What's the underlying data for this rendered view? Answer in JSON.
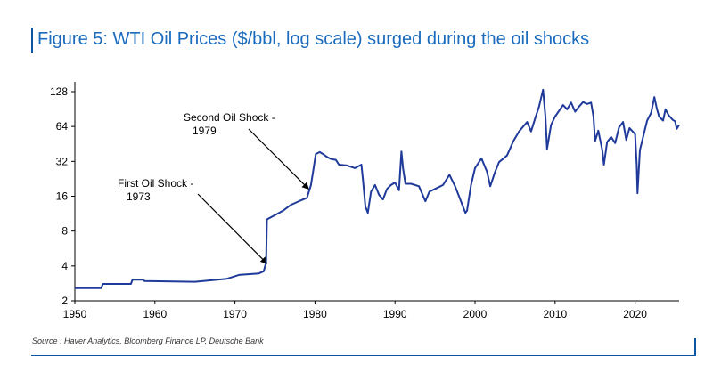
{
  "figure": {
    "title": "Figure 5: WTI Oil Prices ($/bbl, log scale) surged during the oil shocks",
    "source": "Source : Haver Analytics, Bloomberg Finance LP, Deutsche Bank"
  },
  "colors": {
    "series": "#1f3a9a",
    "title": "#1a6bbd",
    "accent": "#0b55a4",
    "axis": "#000000"
  },
  "chart_data": {
    "type": "line",
    "title": "WTI Oil Prices ($/bbl, log scale)",
    "xlabel": "",
    "ylabel": "",
    "yscale": "log2",
    "xlim": [
      1950,
      2025.5
    ],
    "ylim": [
      2,
      140
    ],
    "x_ticks": [
      1950,
      1960,
      1970,
      1980,
      1990,
      2000,
      2010,
      2020
    ],
    "y_ticks": [
      2,
      4,
      8,
      16,
      32,
      64,
      128
    ],
    "grid": false,
    "annotations": [
      {
        "lines": [
          "First Oil Shock -",
          "1973"
        ],
        "x": 1974,
        "y": 4.2
      },
      {
        "lines": [
          "Second Oil Shock -",
          "1979"
        ],
        "x": 1979.2,
        "y": 18.5
      }
    ],
    "series": [
      {
        "name": "WTI",
        "points": [
          [
            1950,
            2.57
          ],
          [
            1953.3,
            2.57
          ],
          [
            1953.5,
            2.8
          ],
          [
            1957.0,
            2.8
          ],
          [
            1957.2,
            3.05
          ],
          [
            1958.5,
            3.05
          ],
          [
            1958.7,
            2.97
          ],
          [
            1965.0,
            2.92
          ],
          [
            1969.0,
            3.1
          ],
          [
            1970.5,
            3.35
          ],
          [
            1973.0,
            3.45
          ],
          [
            1973.6,
            3.6
          ],
          [
            1973.9,
            4.3
          ],
          [
            1974.0,
            10.1
          ],
          [
            1975.0,
            11.0
          ],
          [
            1976.0,
            12.0
          ],
          [
            1977.0,
            13.5
          ],
          [
            1978.0,
            14.5
          ],
          [
            1979.0,
            15.5
          ],
          [
            1979.5,
            20.0
          ],
          [
            1979.8,
            27.0
          ],
          [
            1980.1,
            37.0
          ],
          [
            1980.6,
            38.5
          ],
          [
            1981.0,
            37.0
          ],
          [
            1981.5,
            35.0
          ],
          [
            1982.0,
            33.5
          ],
          [
            1982.6,
            33.0
          ],
          [
            1983.0,
            30.0
          ],
          [
            1984.0,
            29.5
          ],
          [
            1985.0,
            28.0
          ],
          [
            1985.8,
            30.0
          ],
          [
            1986.0,
            22.0
          ],
          [
            1986.3,
            13.0
          ],
          [
            1986.6,
            11.5
          ],
          [
            1987.0,
            17.5
          ],
          [
            1987.5,
            20.0
          ],
          [
            1988.0,
            16.5
          ],
          [
            1988.5,
            15.0
          ],
          [
            1989.0,
            18.5
          ],
          [
            1989.5,
            20.0
          ],
          [
            1990.0,
            21.0
          ],
          [
            1990.5,
            18.0
          ],
          [
            1990.8,
            39.0
          ],
          [
            1991.0,
            28.0
          ],
          [
            1991.3,
            20.5
          ],
          [
            1992.0,
            20.5
          ],
          [
            1993.0,
            19.5
          ],
          [
            1993.8,
            14.5
          ],
          [
            1994.3,
            17.5
          ],
          [
            1995.0,
            18.5
          ],
          [
            1996.0,
            20.0
          ],
          [
            1996.8,
            24.5
          ],
          [
            1997.5,
            19.5
          ],
          [
            1998.0,
            16.0
          ],
          [
            1998.8,
            11.5
          ],
          [
            1999.0,
            12.0
          ],
          [
            1999.5,
            20.0
          ],
          [
            2000.0,
            28.0
          ],
          [
            2000.8,
            34.0
          ],
          [
            2001.5,
            26.0
          ],
          [
            2001.9,
            19.5
          ],
          [
            2002.5,
            26.0
          ],
          [
            2003.0,
            31.5
          ],
          [
            2004.0,
            36.0
          ],
          [
            2004.8,
            48.0
          ],
          [
            2005.5,
            58.0
          ],
          [
            2006.5,
            70.0
          ],
          [
            2007.0,
            58.0
          ],
          [
            2007.5,
            75.0
          ],
          [
            2008.0,
            95.0
          ],
          [
            2008.5,
            133.0
          ],
          [
            2008.8,
            78.0
          ],
          [
            2009.0,
            41.0
          ],
          [
            2009.5,
            66.0
          ],
          [
            2010.0,
            78.0
          ],
          [
            2011.0,
            98.0
          ],
          [
            2011.5,
            90.0
          ],
          [
            2012.0,
            103.0
          ],
          [
            2012.5,
            86.0
          ],
          [
            2013.0,
            95.0
          ],
          [
            2013.5,
            104.0
          ],
          [
            2014.0,
            100.0
          ],
          [
            2014.5,
            103.0
          ],
          [
            2014.8,
            78.0
          ],
          [
            2015.0,
            48.0
          ],
          [
            2015.4,
            59.0
          ],
          [
            2015.9,
            40.0
          ],
          [
            2016.1,
            30.0
          ],
          [
            2016.5,
            47.0
          ],
          [
            2017.0,
            52.0
          ],
          [
            2017.5,
            46.0
          ],
          [
            2018.0,
            63.0
          ],
          [
            2018.5,
            70.0
          ],
          [
            2018.9,
            49.0
          ],
          [
            2019.3,
            62.0
          ],
          [
            2019.8,
            57.0
          ],
          [
            2020.0,
            55.0
          ],
          [
            2020.2,
            30.0
          ],
          [
            2020.3,
            17.0
          ],
          [
            2020.6,
            40.0
          ],
          [
            2021.0,
            52.0
          ],
          [
            2021.5,
            72.0
          ],
          [
            2022.0,
            84.0
          ],
          [
            2022.4,
            115.0
          ],
          [
            2022.7,
            92.0
          ],
          [
            2023.0,
            78.0
          ],
          [
            2023.5,
            72.0
          ],
          [
            2023.8,
            90.0
          ],
          [
            2024.2,
            80.0
          ],
          [
            2024.7,
            73.0
          ],
          [
            2025.0,
            71.0
          ],
          [
            2025.2,
            61.0
          ],
          [
            2025.5,
            66.0
          ]
        ]
      }
    ]
  }
}
